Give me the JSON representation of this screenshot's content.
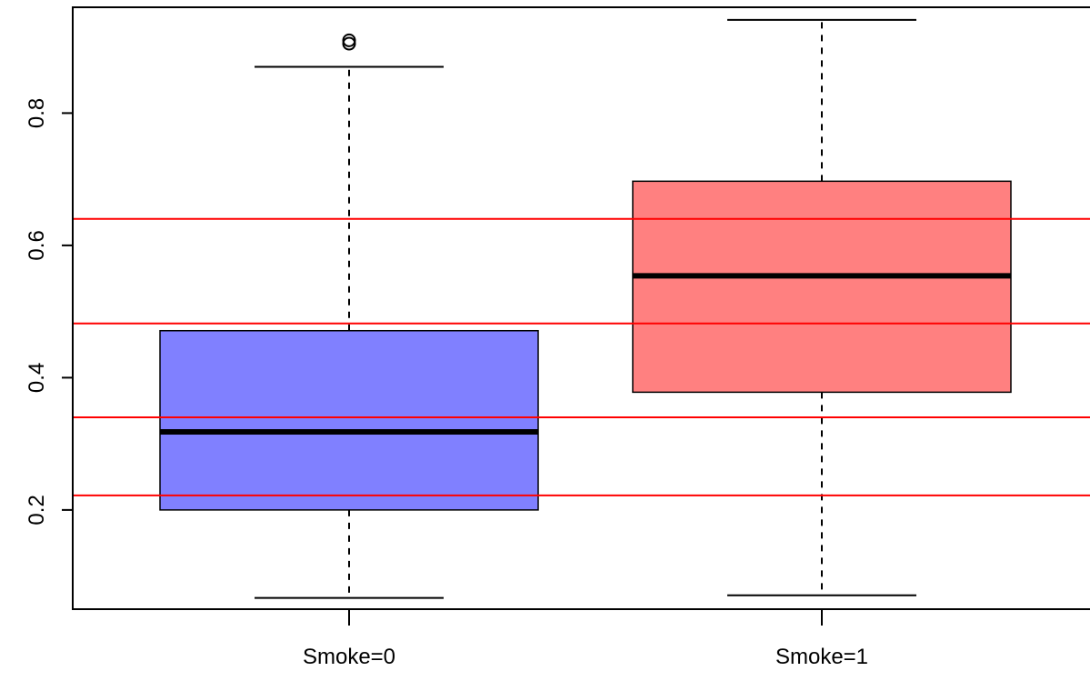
{
  "chart_data": {
    "type": "boxplot",
    "title": "",
    "xlabel": "",
    "ylabel": "",
    "ylim": [
      0.05,
      0.96
    ],
    "y_ticks": [
      {
        "value": 0.2,
        "label": "0.2"
      },
      {
        "value": 0.4,
        "label": "0.4"
      },
      {
        "value": 0.6,
        "label": "0.6"
      },
      {
        "value": 0.8,
        "label": "0.8"
      }
    ],
    "grid": false,
    "legend": "none",
    "categories": [
      "Smoke=0",
      "Smoke=1"
    ],
    "boxes": [
      {
        "label": "Smoke=0",
        "color": "#8080ff",
        "whisker_low": 0.067,
        "q1": 0.2,
        "median": 0.318,
        "q3": 0.471,
        "whisker_high": 0.87,
        "outliers": [
          0.905,
          0.91
        ]
      },
      {
        "label": "Smoke=1",
        "color": "#ff8080",
        "whisker_low": 0.071,
        "q1": 0.378,
        "median": 0.554,
        "q3": 0.697,
        "whisker_high": 0.941,
        "outliers": []
      }
    ],
    "reference_lines": {
      "color": "#ff0000",
      "values": [
        0.222,
        0.34,
        0.482,
        0.64
      ]
    }
  }
}
